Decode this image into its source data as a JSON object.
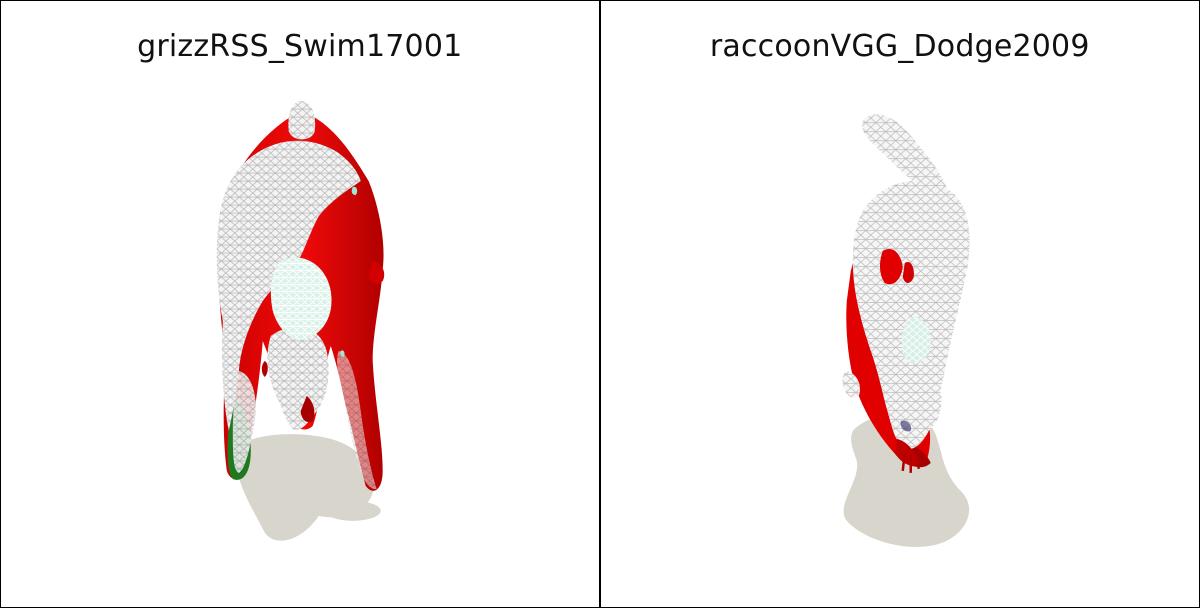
{
  "panels": [
    {
      "title": "grizzRSS_Swim17001"
    },
    {
      "title": "raccoonVGG_Dodge2009"
    }
  ],
  "colors": {
    "border": "#000000",
    "background": "#ffffff",
    "mesh_red": "#e00000",
    "mesh_dark_red": "#a80000",
    "mesh_green": "#1f7a1f",
    "wireframe": "#ffffff",
    "wireframe_shade": "#cfcfcf",
    "mint_patch": "#bfe8d8",
    "shadow": "#d8d5cd"
  },
  "icons": {
    "left_model": "grizzly-3d-model-icon",
    "right_model": "raccoon-3d-model-icon"
  }
}
